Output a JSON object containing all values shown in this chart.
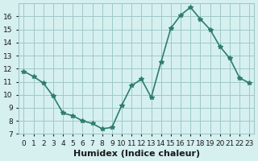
{
  "xlabel": "Humidex (Indice chaleur)",
  "x": [
    0,
    1,
    2,
    3,
    4,
    5,
    6,
    7,
    8,
    9,
    10,
    11,
    12,
    13,
    14,
    15,
    16,
    17,
    18,
    19,
    20,
    21,
    22,
    23
  ],
  "y": [
    11.8,
    11.4,
    10.9,
    9.9,
    8.6,
    8.4,
    8.0,
    7.8,
    7.4,
    7.5,
    9.2,
    10.7,
    11.2,
    9.8,
    12.5,
    15.1,
    16.1,
    16.7,
    15.8,
    15.0,
    13.7,
    12.8,
    11.3,
    10.9
  ],
  "line_color": "#2d7d6e",
  "marker": "*",
  "marker_size": 4,
  "line_width": 1.2,
  "bg_color": "#d6f0f0",
  "grid_color": "#a0c8c8",
  "ylim": [
    7,
    17
  ],
  "yticks": [
    7,
    8,
    9,
    10,
    11,
    12,
    13,
    14,
    15,
    16
  ],
  "xtick_labels": [
    "0",
    "1",
    "2",
    "3",
    "4",
    "5",
    "6",
    "7",
    "8",
    "9",
    "10",
    "11",
    "12",
    "13",
    "14",
    "15",
    "16",
    "17",
    "18",
    "19",
    "20",
    "21",
    "22",
    "23"
  ],
  "tick_fontsize": 6.5,
  "xlabel_fontsize": 8,
  "label_color": "#1a1a1a"
}
